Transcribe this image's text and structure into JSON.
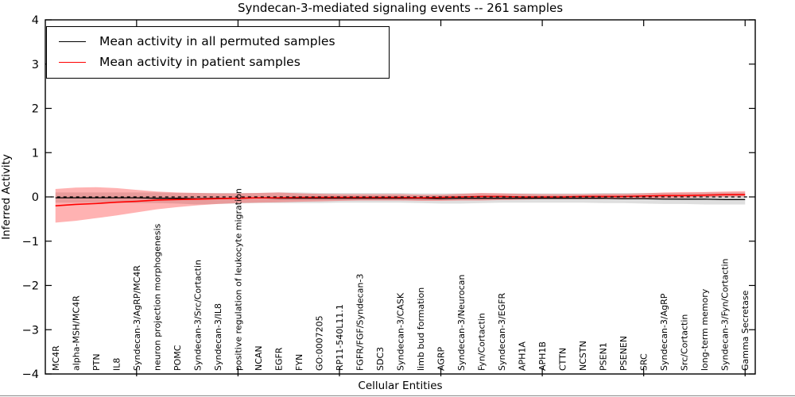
{
  "title": "Syndecan-3-mediated signaling events -- 261 samples",
  "legend": {
    "items": [
      {
        "label": "Mean activity in all permuted samples",
        "color": "#000000"
      },
      {
        "label": "Mean activity in patient samples",
        "color": "#ff0000"
      }
    ]
  },
  "chart_data": {
    "type": "line",
    "title": "Syndecan-3-mediated signaling events -- 261 samples",
    "xlabel": "Cellular Entities",
    "ylabel": "Inferred Activity",
    "ylim": [
      -4,
      4
    ],
    "yticks": [
      4,
      3,
      2,
      1,
      0,
      -1,
      -2,
      -3,
      -4
    ],
    "ytick_labels": [
      "4",
      "3",
      "2",
      "1",
      "0",
      "−1",
      "−2",
      "−3",
      "−4"
    ],
    "grid": false,
    "legend_position": "upper left",
    "categories": [
      "MC4R",
      "alpha-MSH/MC4R",
      "PTN",
      "IL8",
      "Syndecan-3/AgRP/MC4R",
      "neuron projection morphogenesis",
      "POMC",
      "Syndecan-3/Src/Cortactin",
      "Syndecan-3/IL8",
      "positive regulation of leukocyte migration",
      "NCAN",
      "EGFR",
      "FYN",
      "GO:0007205",
      "RP11-540L11.1",
      "FGFR/FGF/Syndecan-3",
      "SDC3",
      "Syndecan-3/CASK",
      "limb bud formation",
      "AGRP",
      "Syndecan-3/Neurocan",
      "Fyn/Cortactin",
      "Syndecan-3/EGFR",
      "APH1A",
      "APH1B",
      "CTTN",
      "NCSTN",
      "PSEN1",
      "PSENEN",
      "SRC",
      "Syndecan-3/AgRP",
      "Src/Cortactin",
      "long-term memory",
      "Syndecan-3/Fyn/Cortactin",
      "Gamma Secretase"
    ],
    "series": [
      {
        "name": "Mean activity in all permuted samples",
        "color": "#000000",
        "values": [
          -0.02,
          -0.02,
          -0.02,
          -0.02,
          -0.02,
          -0.03,
          -0.03,
          -0.04,
          -0.03,
          -0.03,
          -0.02,
          -0.03,
          -0.03,
          -0.03,
          -0.03,
          -0.03,
          -0.03,
          -0.03,
          -0.03,
          -0.04,
          -0.03,
          -0.03,
          -0.03,
          -0.03,
          -0.03,
          -0.03,
          -0.03,
          -0.03,
          -0.04,
          -0.04,
          -0.05,
          -0.05,
          -0.05,
          -0.06,
          -0.06
        ]
      },
      {
        "name": "Mean activity in patient samples",
        "color": "#ff0000",
        "values": [
          -0.2,
          -0.17,
          -0.15,
          -0.12,
          -0.1,
          -0.07,
          -0.06,
          -0.05,
          -0.04,
          -0.03,
          -0.02,
          -0.02,
          -0.01,
          -0.01,
          -0.01,
          -0.01,
          -0.01,
          -0.01,
          -0.02,
          -0.01,
          0.0,
          0.01,
          0.01,
          0.0,
          0.0,
          0.0,
          0.01,
          0.01,
          0.01,
          0.02,
          0.03,
          0.03,
          0.04,
          0.05,
          0.05
        ]
      }
    ],
    "bands": [
      {
        "name": "permuted-samples-range",
        "color": "#8a8a8a",
        "opacity": 0.28,
        "upper": [
          0.1,
          0.1,
          0.1,
          0.1,
          0.1,
          0.1,
          0.09,
          0.09,
          0.09,
          0.09,
          0.09,
          0.1,
          0.1,
          0.09,
          0.09,
          0.09,
          0.09,
          0.09,
          0.08,
          0.08,
          0.08,
          0.08,
          0.08,
          0.08,
          0.08,
          0.08,
          0.08,
          0.09,
          0.09,
          0.09,
          0.09,
          0.09,
          0.1,
          0.1,
          0.1
        ],
        "lower": [
          -0.13,
          -0.13,
          -0.13,
          -0.13,
          -0.14,
          -0.14,
          -0.15,
          -0.17,
          -0.16,
          -0.15,
          -0.14,
          -0.14,
          -0.14,
          -0.14,
          -0.13,
          -0.13,
          -0.13,
          -0.13,
          -0.14,
          -0.15,
          -0.15,
          -0.14,
          -0.13,
          -0.13,
          -0.13,
          -0.13,
          -0.13,
          -0.14,
          -0.14,
          -0.15,
          -0.16,
          -0.16,
          -0.17,
          -0.17,
          -0.17
        ]
      },
      {
        "name": "patient-samples-range",
        "color": "#ff0000",
        "opacity": 0.3,
        "upper": [
          0.18,
          0.21,
          0.22,
          0.2,
          0.16,
          0.12,
          0.1,
          0.09,
          0.08,
          0.08,
          0.09,
          0.1,
          0.08,
          0.07,
          0.06,
          0.06,
          0.06,
          0.06,
          0.05,
          0.05,
          0.07,
          0.09,
          0.08,
          0.07,
          0.06,
          0.06,
          0.06,
          0.07,
          0.07,
          0.08,
          0.1,
          0.11,
          0.11,
          0.12,
          0.13
        ],
        "lower": [
          -0.58,
          -0.54,
          -0.48,
          -0.42,
          -0.35,
          -0.28,
          -0.23,
          -0.19,
          -0.16,
          -0.14,
          -0.13,
          -0.12,
          -0.11,
          -0.1,
          -0.09,
          -0.08,
          -0.08,
          -0.08,
          -0.09,
          -0.09,
          -0.08,
          -0.08,
          -0.07,
          -0.06,
          -0.05,
          -0.05,
          -0.05,
          -0.05,
          -0.05,
          -0.04,
          -0.03,
          -0.02,
          -0.01,
          0.0,
          0.01
        ]
      }
    ],
    "zero_line": {
      "value": 0,
      "style": "dashed",
      "color": "#000000"
    }
  }
}
